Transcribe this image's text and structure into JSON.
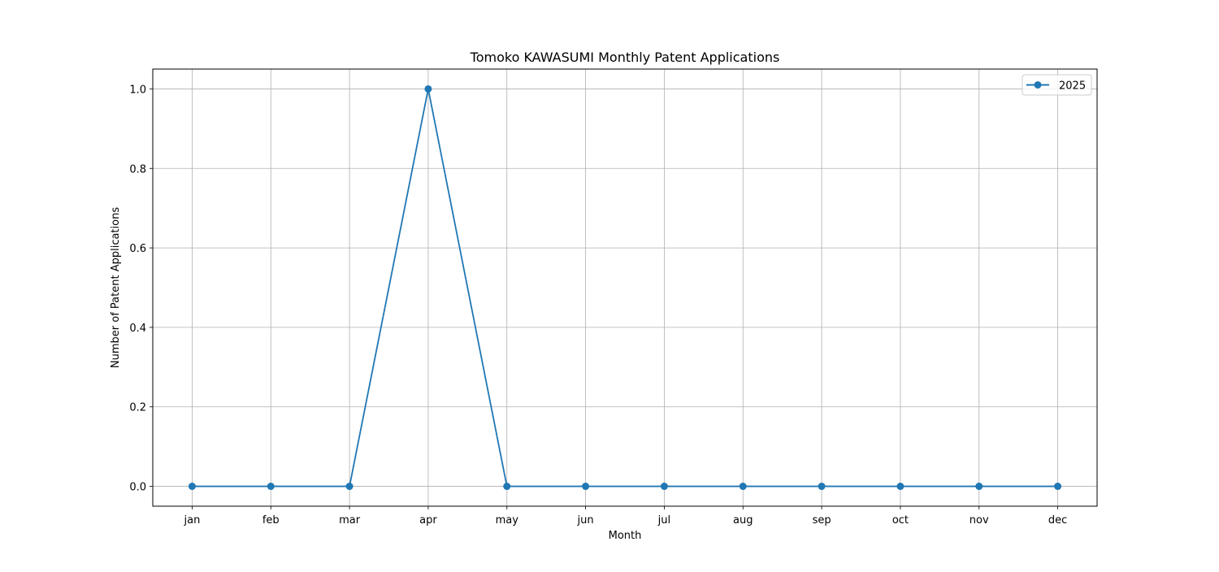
{
  "chart_data": {
    "type": "line",
    "title": "Tomoko KAWASUMI Monthly Patent Applications",
    "xlabel": "Month",
    "ylabel": "Number of Patent Applications",
    "categories": [
      "jan",
      "feb",
      "mar",
      "apr",
      "may",
      "jun",
      "jul",
      "aug",
      "sep",
      "oct",
      "nov",
      "dec"
    ],
    "series": [
      {
        "name": "2025",
        "values": [
          0,
          0,
          0,
          1,
          0,
          0,
          0,
          0,
          0,
          0,
          0,
          0
        ],
        "color": "#1f77b4",
        "marker": "circle"
      }
    ],
    "ylim": [
      -0.05,
      1.05
    ],
    "yticks": [
      "0.0",
      "0.2",
      "0.4",
      "0.6",
      "0.8",
      "1.0"
    ],
    "grid": true,
    "legend_position": "top-right"
  }
}
